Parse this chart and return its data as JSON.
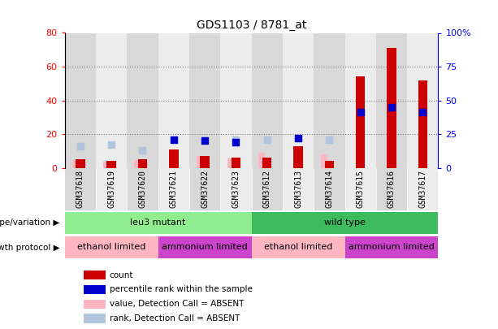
{
  "title": "GDS1103 / 8781_at",
  "samples": [
    "GSM37618",
    "GSM37619",
    "GSM37620",
    "GSM37621",
    "GSM37622",
    "GSM37623",
    "GSM37612",
    "GSM37613",
    "GSM37614",
    "GSM37615",
    "GSM37616",
    "GSM37617"
  ],
  "count": [
    5.0,
    4.0,
    5.0,
    11.0,
    7.0,
    6.0,
    6.0,
    13.0,
    4.0,
    54.0,
    71.0,
    52.0
  ],
  "percentile_rank": [
    null,
    null,
    null,
    21.0,
    20.0,
    19.0,
    null,
    22.0,
    null,
    41.0,
    45.0,
    41.0
  ],
  "value_absent": [
    4.5,
    3.5,
    4.5,
    null,
    7.0,
    5.5,
    9.0,
    null,
    8.0,
    null,
    null,
    null
  ],
  "rank_absent": [
    16.0,
    17.0,
    13.0,
    null,
    null,
    21.0,
    21.0,
    null,
    21.0,
    null,
    null,
    null
  ],
  "count_color": "#cc0000",
  "percentile_color": "#0000cc",
  "value_absent_color": "#ffb6c1",
  "rank_absent_color": "#b0c4de",
  "ylim_left": [
    0,
    80
  ],
  "ylim_right": [
    0,
    100
  ],
  "yticks_left": [
    0,
    20,
    40,
    60,
    80
  ],
  "yticks_right": [
    0,
    25,
    50,
    75,
    100
  ],
  "yticklabels_left": [
    "0",
    "20",
    "40",
    "60",
    "80"
  ],
  "yticklabels_right": [
    "0",
    "25",
    "50",
    "75",
    "100%"
  ],
  "genotype_groups": [
    {
      "label": "leu3 mutant",
      "start": 0,
      "end": 5,
      "color": "#90ee90"
    },
    {
      "label": "wild type",
      "start": 6,
      "end": 11,
      "color": "#3dbb5e"
    }
  ],
  "growth_groups": [
    {
      "label": "ethanol limited",
      "start": 0,
      "end": 2,
      "color": "#ffb6c1"
    },
    {
      "label": "ammonium limited",
      "start": 3,
      "end": 5,
      "color": "#cc44cc"
    },
    {
      "label": "ethanol limited",
      "start": 6,
      "end": 8,
      "color": "#ffb6c1"
    },
    {
      "label": "ammonium limited",
      "start": 9,
      "end": 11,
      "color": "#cc44cc"
    }
  ],
  "legend_items": [
    {
      "label": "count",
      "color": "#cc0000"
    },
    {
      "label": "percentile rank within the sample",
      "color": "#0000cc"
    },
    {
      "label": "value, Detection Call = ABSENT",
      "color": "#ffb6c1"
    },
    {
      "label": "rank, Detection Call = ABSENT",
      "color": "#b0c4de"
    }
  ],
  "bar_width": 0.3,
  "dot_size": 30,
  "xlabel_fontsize": 7,
  "title_fontsize": 10,
  "annotation_label_fontsize": 8,
  "row_label_fontsize": 7.5
}
